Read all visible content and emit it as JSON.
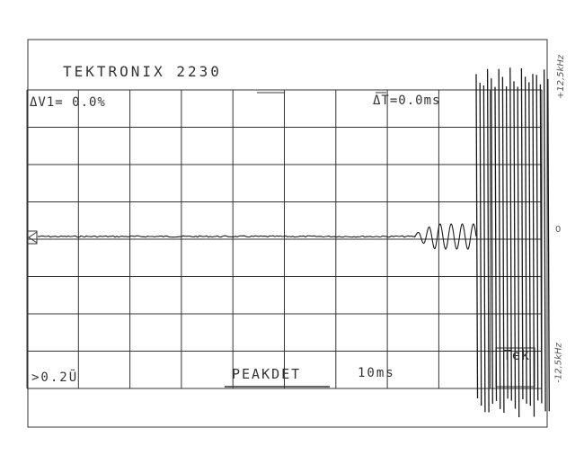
{
  "header": {
    "title": "TEKTRONIX 2230"
  },
  "readouts": {
    "delta_v": "ΔV1= 0.0%",
    "delta_t": "ΔT=0.0ms",
    "sensitivity": ">0.2Ũ",
    "mode": "PEAKDET",
    "timebase": "10ms",
    "brand": "Tek"
  },
  "annotations": {
    "top": "+12,5kHz",
    "center": "0",
    "bottom": "-12,5kHz"
  },
  "chart_data": {
    "type": "line",
    "title": "TEKTRONIX 2230",
    "grid": true,
    "grid_divisions": {
      "x": 10,
      "y": 8
    },
    "y_scale_labels": [
      "+12,5kHz",
      "0",
      "-12,5kHz"
    ],
    "timebase": "10ms",
    "colors": {
      "trace": "#1a1a1a",
      "grid": "#333333"
    }
  }
}
